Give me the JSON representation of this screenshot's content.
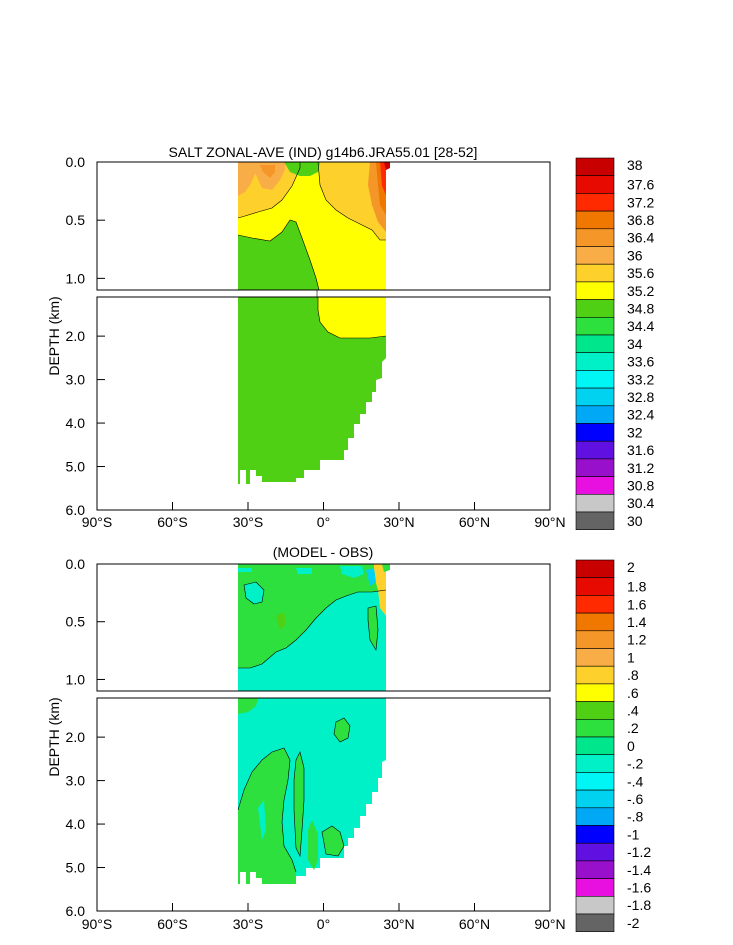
{
  "chart_data": [
    {
      "type": "contour",
      "title": "SALT ZONAL-AVE (IND) g14b6.JRA55.01 [28-52]",
      "ylabel": "DEPTH (km)",
      "xlabel": "",
      "xlim": [
        -90,
        90
      ],
      "ylim_upper": [
        0.0,
        1.1
      ],
      "ylim_lower": [
        1.1,
        6.0
      ],
      "yticks_upper": [
        "0.0",
        "0.5",
        "1.0"
      ],
      "yticks_lower": [
        "2.0",
        "3.0",
        "4.0",
        "5.0",
        "6.0"
      ],
      "xticks": [
        "90°S",
        "60°S",
        "30°S",
        "0°",
        "30°N",
        "60°N",
        "90°N"
      ],
      "colorbar_labels": [
        "38",
        "37.6",
        "37.2",
        "36.8",
        "36.4",
        "36",
        "35.6",
        "35.2",
        "34.8",
        "34.4",
        "34",
        "33.6",
        "33.2",
        "32.8",
        "32.4",
        "32",
        "31.6",
        "31.2",
        "30.8",
        "30.4",
        "30"
      ],
      "colorbar_colors": [
        "#c80000",
        "#e60a00",
        "#ff2a00",
        "#f07800",
        "#f59628",
        "#f9ad46",
        "#fdd02c",
        "#ffff00",
        "#50d014",
        "#2ee03e",
        "#00e68c",
        "#00f0c8",
        "#00f5f5",
        "#00d2f0",
        "#00a8f5",
        "#0000ff",
        "#6010e0",
        "#9910cc",
        "#e810e0",
        "#c8c8c8",
        "#646464"
      ],
      "data_extent": {
        "lat_min": -34,
        "lat_max": 27,
        "max_depth_km": 5.4
      }
    },
    {
      "type": "contour",
      "title": "(MODEL - OBS)",
      "ylabel": "DEPTH (km)",
      "xlabel": "",
      "xlim": [
        -90,
        90
      ],
      "ylim_upper": [
        0.0,
        1.1
      ],
      "ylim_lower": [
        1.1,
        6.0
      ],
      "yticks_upper": [
        "0.0",
        "0.5",
        "1.0"
      ],
      "yticks_lower": [
        "2.0",
        "3.0",
        "4.0",
        "5.0",
        "6.0"
      ],
      "xticks": [
        "90°S",
        "60°S",
        "30°S",
        "0°",
        "30°N",
        "60°N",
        "90°N"
      ],
      "colorbar_labels": [
        "2",
        "1.8",
        "1.6",
        "1.4",
        "1.2",
        "1",
        ".8",
        ".6",
        ".4",
        ".2",
        "0",
        "-.2",
        "-.4",
        "-.6",
        "-.8",
        "-1",
        "-1.2",
        "-1.4",
        "-1.6",
        "-1.8",
        "-2"
      ],
      "colorbar_colors": [
        "#c80000",
        "#e60a00",
        "#ff2a00",
        "#f07800",
        "#f59628",
        "#f9ad46",
        "#fdd02c",
        "#ffff00",
        "#50d014",
        "#2ee03e",
        "#00e68c",
        "#00f0c8",
        "#00f5f5",
        "#00d2f0",
        "#00a8f5",
        "#0000ff",
        "#6010e0",
        "#9910cc",
        "#e810e0",
        "#c8c8c8",
        "#646464"
      ],
      "data_extent": {
        "lat_min": -34,
        "lat_max": 27,
        "max_depth_km": 5.4
      }
    }
  ]
}
